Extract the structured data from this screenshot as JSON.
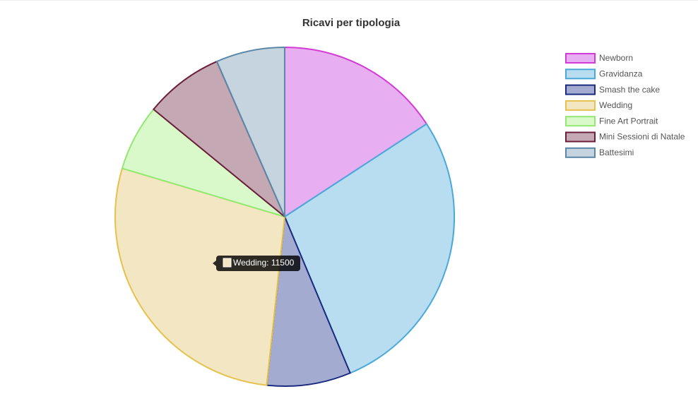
{
  "chart_data": {
    "type": "pie",
    "title": "Ricavi per tipologia",
    "categories": [
      "Newborn",
      "Gravidanza",
      "Smash the cake",
      "Wedding",
      "Fine Art Portrait",
      "Mini Sessioni di Natale",
      "Battesimi"
    ],
    "values": [
      6500,
      11500,
      3300,
      11500,
      2600,
      3100,
      2700
    ],
    "colors": [
      "#e8aef2",
      "#b8ddf0",
      "#a3acd0",
      "#f3e6c2",
      "#d9f9cb",
      "#c4a9b5",
      "#c5d4de"
    ],
    "border_colors": [
      "#d33bd6",
      "#4aa9d9",
      "#1a2a80",
      "#e6c14d",
      "#92e870",
      "#6b1f3a",
      "#5b88a8"
    ],
    "legend_position": "right",
    "tooltip": {
      "text": "Wedding: 11500",
      "index": 3
    }
  }
}
